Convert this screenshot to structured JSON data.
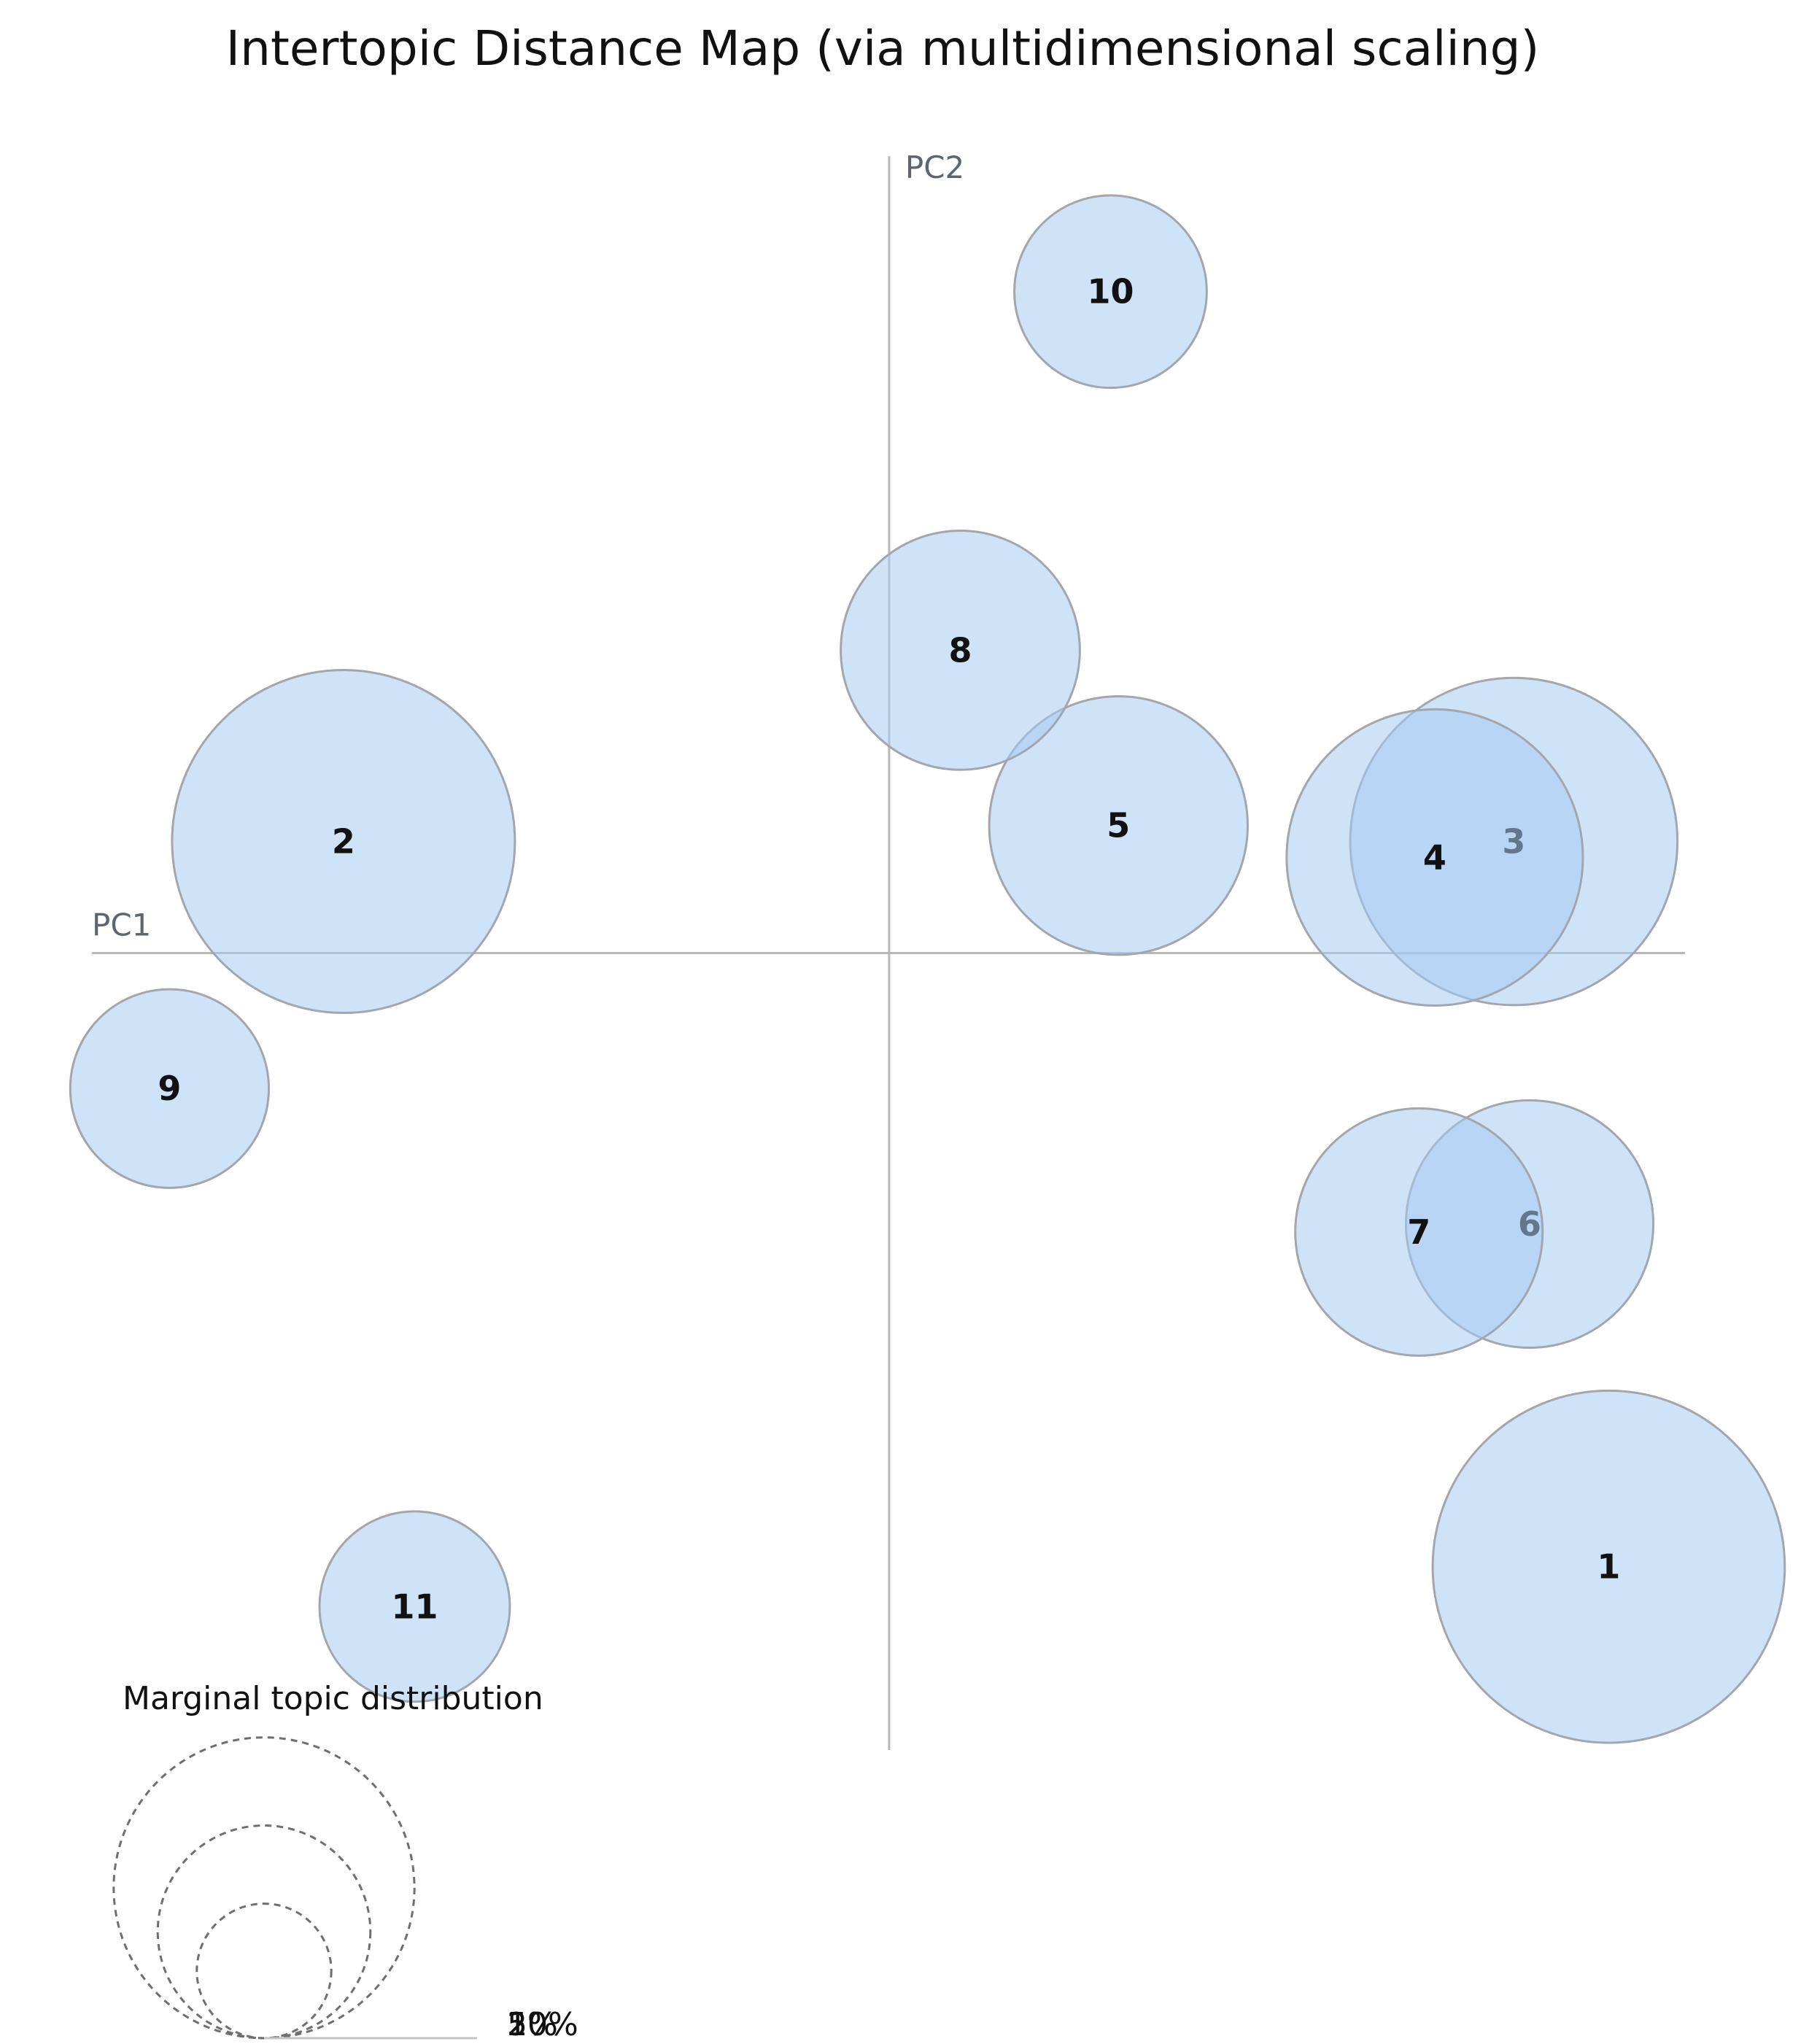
{
  "chart_data": {
    "type": "scatter",
    "title": "Intertopic Distance Map (via multidimensional scaling)",
    "xlabel": "PC1",
    "ylabel": "PC2",
    "xlim": [
      -1.01,
      1.0
    ],
    "ylim": [
      -1.0,
      1.0
    ],
    "grid": false,
    "legend": {
      "title": "Marginal topic distribution",
      "placement": "bottom-left",
      "sizes": [
        {
          "label": "2%",
          "value": 2
        },
        {
          "label": "5%",
          "value": 5
        },
        {
          "label": "10%",
          "value": 10
        }
      ]
    },
    "topics": [
      {
        "label": "1",
        "x": 0.91,
        "y": -0.77,
        "size": 15.4
      },
      {
        "label": "2",
        "x": -0.69,
        "y": 0.14,
        "size": 14.6
      },
      {
        "label": "3",
        "x": 0.79,
        "y": 0.14,
        "size": 13.3
      },
      {
        "label": "4",
        "x": 0.69,
        "y": 0.12,
        "size": 10.9
      },
      {
        "label": "5",
        "x": 0.29,
        "y": 0.16,
        "size": 8.3
      },
      {
        "label": "6",
        "x": 0.81,
        "y": -0.34,
        "size": 7.6
      },
      {
        "label": "7",
        "x": 0.67,
        "y": -0.35,
        "size": 7.6
      },
      {
        "label": "8",
        "x": 0.09,
        "y": 0.38,
        "size": 7.1
      },
      {
        "label": "9",
        "x": -0.91,
        "y": -0.17,
        "size": 4.9
      },
      {
        "label": "10",
        "x": 0.28,
        "y": 0.83,
        "size": 4.6
      },
      {
        "label": "11",
        "x": -0.6,
        "y": -0.82,
        "size": 4.5
      }
    ]
  }
}
